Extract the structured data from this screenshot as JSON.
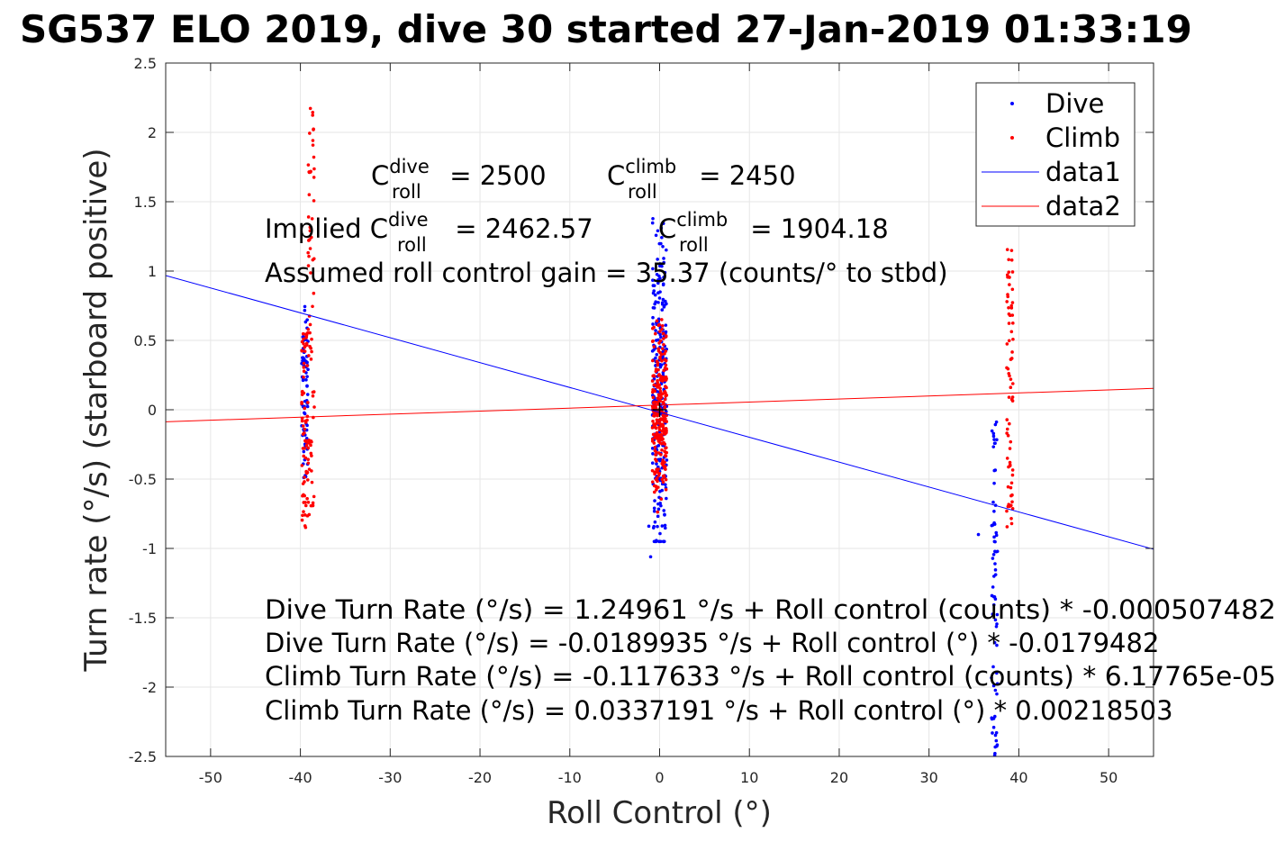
{
  "chart_data": {
    "type": "scatter",
    "title": "SG537 ELO 2019, dive 30 started 27-Jan-2019 01:33:19",
    "xlabel": "Roll Control (°)",
    "ylabel": "Turn rate (°/s) (starboard positive)",
    "xlim": [
      -55,
      55
    ],
    "ylim": [
      -2.5,
      2.5
    ],
    "xticks": [
      -50,
      -40,
      -30,
      -20,
      -10,
      0,
      10,
      20,
      30,
      40,
      50
    ],
    "yticks": [
      -2.5,
      -2,
      -1.5,
      -1,
      -0.5,
      0,
      0.5,
      1,
      1.5,
      2,
      2.5
    ],
    "xtick_labels": [
      "-50",
      "-40",
      "-30",
      "-20",
      "-10",
      "0",
      "10",
      "20",
      "30",
      "40",
      "50"
    ],
    "ytick_labels": [
      "-2.5",
      "-2",
      "-1.5",
      "-1",
      "-0.5",
      "0",
      "0.5",
      "1",
      "1.5",
      "2",
      "2.5"
    ],
    "grid": true,
    "legend_position": "top-right",
    "series": [
      {
        "name": "Dive",
        "kind": "points",
        "color": "#0000ff",
        "clusters": [
          {
            "x": -39.5,
            "y_min": -0.5,
            "y_max": 0.75
          },
          {
            "x": 0,
            "y_min": -0.95,
            "y_max": 1.6
          },
          {
            "x": 37.3,
            "y_min": -2.5,
            "y_max": 0.0
          }
        ],
        "points": [
          [
            -1,
            -1.06
          ],
          [
            35.5,
            -0.9
          ],
          [
            -1.2,
            -0.84
          ],
          [
            0.5,
            -0.95
          ]
        ]
      },
      {
        "name": "Climb",
        "kind": "points",
        "color": "#ff0000",
        "clusters": [
          {
            "x": -39.5,
            "y_min": -0.88,
            "y_max": 0.6
          },
          {
            "x": -38.8,
            "y_min": -0.8,
            "y_max": 2.22
          },
          {
            "x": 0,
            "y_min": -0.75,
            "y_max": 0.65
          },
          {
            "x": 39,
            "y_min": -0.85,
            "y_max": 1.18
          }
        ]
      },
      {
        "name": "data1",
        "kind": "line",
        "color": "#0000ff",
        "x": [
          -55,
          55
        ],
        "y": [
          0.968,
          -1.006
        ]
      },
      {
        "name": "data2",
        "kind": "line",
        "color": "#ff0000",
        "x": [
          -55,
          55
        ],
        "y": [
          -0.0865,
          0.1539
        ]
      }
    ],
    "center_marker": {
      "x": 0,
      "y": 0
    }
  },
  "annotations": {
    "c_roll_dive_base": "C",
    "c_roll_dive_sup": "dive",
    "c_roll_dive_sub": "roll",
    "c_roll_dive_value": " = 2500",
    "c_roll_climb_base": "C",
    "c_roll_climb_sup": "climb",
    "c_roll_climb_sub": "roll",
    "c_roll_climb_value": " = 2450",
    "implied_prefix": "Implied C",
    "implied_dive_sup": "dive",
    "implied_dive_sub": "roll",
    "implied_dive_value": " = 2462.57",
    "implied_climb_base": "C",
    "implied_climb_sup": "climb",
    "implied_climb_sub": "roll",
    "implied_climb_value": " = 1904.18",
    "gain": "Assumed roll control gain = 35.37 (counts/° to stbd)",
    "eq1": "Dive Turn Rate (°/s) = 1.24961 °/s + Roll control (counts) * -0.000507482",
    "eq2": "Dive Turn Rate (°/s) = -0.0189935 °/s + Roll control (°) * -0.0179482",
    "eq3": "Climb Turn Rate (°/s) = -0.117633 °/s + Roll control (counts) * 6.17765e-05",
    "eq4": "Climb Turn Rate (°/s) = 0.0337191 °/s + Roll control (°) * 0.00218503"
  }
}
